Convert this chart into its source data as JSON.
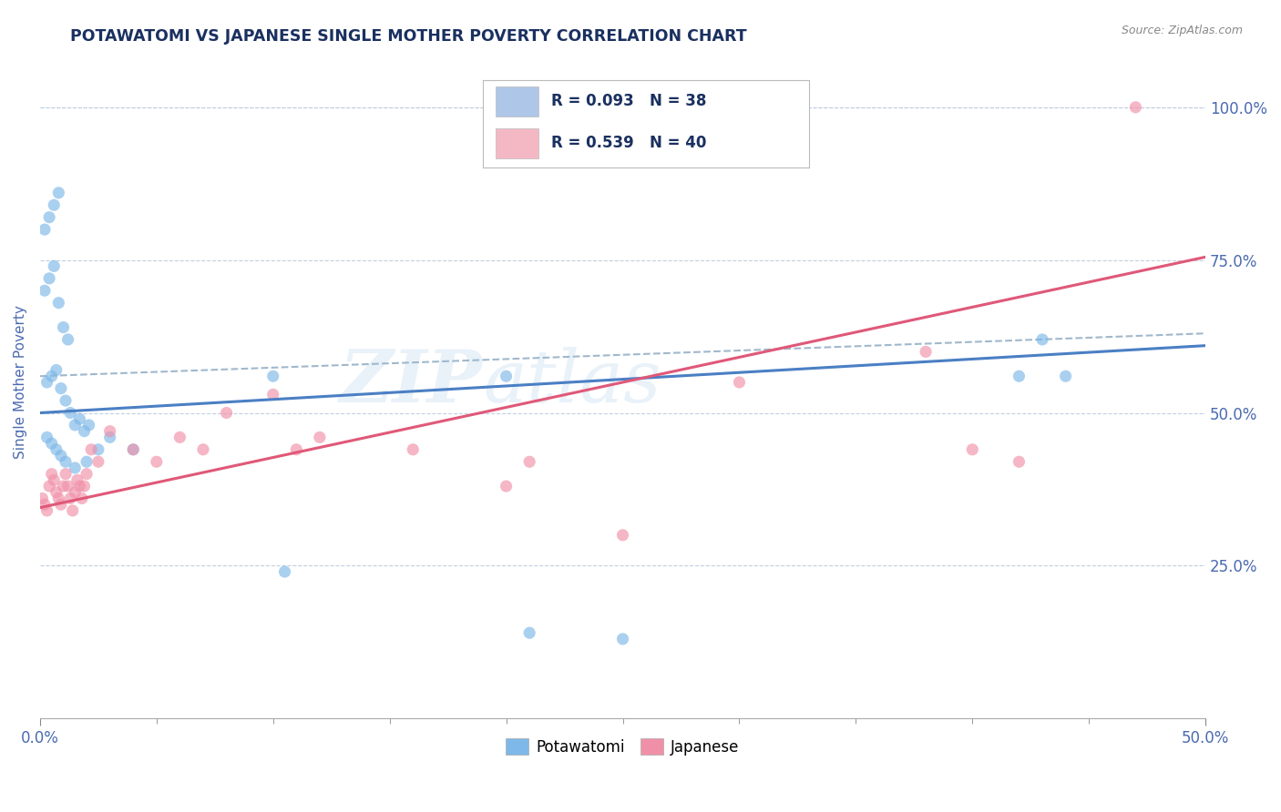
{
  "title": "POTAWATOMI VS JAPANESE SINGLE MOTHER POVERTY CORRELATION CHART",
  "source": "Source: ZipAtlas.com",
  "ylabel": "Single Mother Poverty",
  "xlim": [
    0.0,
    0.5
  ],
  "ylim": [
    0.0,
    1.1
  ],
  "yticks": [
    0.25,
    0.5,
    0.75,
    1.0
  ],
  "ytick_labels": [
    "25.0%",
    "50.0%",
    "75.0%",
    "100.0%"
  ],
  "legend_entries": [
    {
      "label": "R = 0.093   N = 38",
      "color": "#aec6e8"
    },
    {
      "label": "R = 0.539   N = 40",
      "color": "#f4b8c4"
    }
  ],
  "legend_bottom": [
    "Potawatomi",
    "Japanese"
  ],
  "potawatomi_color": "#7db8e8",
  "japanese_color": "#f090a8",
  "blue_line_color": "#4a7fc4",
  "pink_line_color": "#e05878",
  "dashed_line_color": "#a0b8cc",
  "watermark_text": "ZIP",
  "watermark_text2": "atlas",
  "background_color": "#ffffff",
  "grid_color": "#c0d0e0",
  "title_color": "#1a3060",
  "axis_label_color": "#4a6ab0",
  "tick_color": "#4a6ab0",
  "blue_line_intercept": 0.5,
  "blue_line_slope": 0.22,
  "pink_line_intercept": 0.345,
  "pink_line_slope": 0.82,
  "dashed_line_intercept": 0.56,
  "dashed_line_slope": 0.14,
  "potawatomi_x": [
    0.002,
    0.004,
    0.006,
    0.008,
    0.002,
    0.004,
    0.006,
    0.008,
    0.01,
    0.012,
    0.003,
    0.005,
    0.007,
    0.009,
    0.011,
    0.013,
    0.015,
    0.017,
    0.019,
    0.021,
    0.003,
    0.005,
    0.007,
    0.009,
    0.011,
    0.015,
    0.02,
    0.025,
    0.03,
    0.04,
    0.1,
    0.105,
    0.2,
    0.21,
    0.25,
    0.42,
    0.43,
    0.44
  ],
  "potawatomi_y": [
    0.8,
    0.82,
    0.84,
    0.86,
    0.7,
    0.72,
    0.74,
    0.68,
    0.64,
    0.62,
    0.55,
    0.56,
    0.57,
    0.54,
    0.52,
    0.5,
    0.48,
    0.49,
    0.47,
    0.48,
    0.46,
    0.45,
    0.44,
    0.43,
    0.42,
    0.41,
    0.42,
    0.44,
    0.46,
    0.44,
    0.56,
    0.24,
    0.56,
    0.14,
    0.13,
    0.56,
    0.62,
    0.56
  ],
  "japanese_x": [
    0.001,
    0.002,
    0.003,
    0.004,
    0.005,
    0.006,
    0.007,
    0.008,
    0.009,
    0.01,
    0.011,
    0.012,
    0.013,
    0.014,
    0.015,
    0.016,
    0.017,
    0.018,
    0.019,
    0.02,
    0.022,
    0.025,
    0.03,
    0.04,
    0.05,
    0.06,
    0.07,
    0.08,
    0.1,
    0.11,
    0.12,
    0.16,
    0.2,
    0.21,
    0.25,
    0.3,
    0.38,
    0.4,
    0.42,
    0.47
  ],
  "japanese_y": [
    0.36,
    0.35,
    0.34,
    0.38,
    0.4,
    0.39,
    0.37,
    0.36,
    0.35,
    0.38,
    0.4,
    0.38,
    0.36,
    0.34,
    0.37,
    0.39,
    0.38,
    0.36,
    0.38,
    0.4,
    0.44,
    0.42,
    0.47,
    0.44,
    0.42,
    0.46,
    0.44,
    0.5,
    0.53,
    0.44,
    0.46,
    0.44,
    0.38,
    0.42,
    0.3,
    0.55,
    0.6,
    0.44,
    0.42,
    1.0
  ]
}
